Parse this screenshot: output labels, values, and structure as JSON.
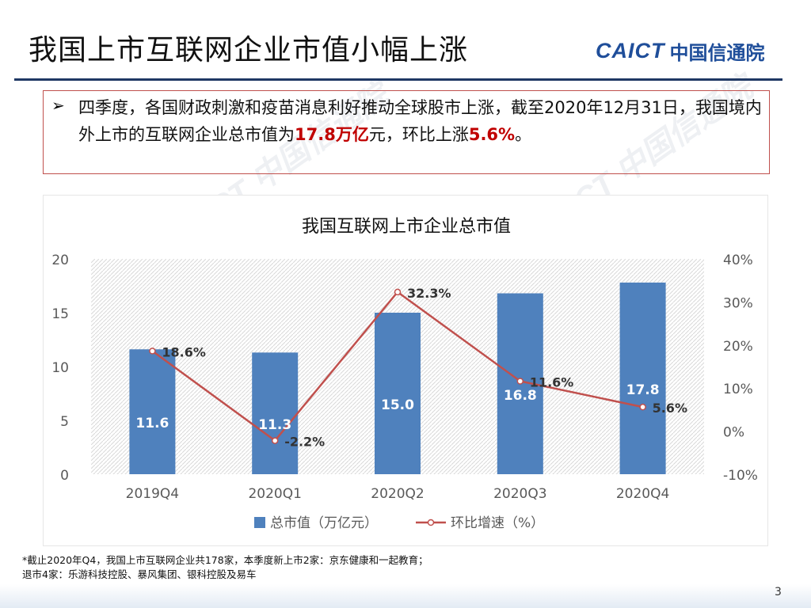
{
  "slide": {
    "title": "我国上市互联网企业市值小幅上涨",
    "logo_latin": "CAICT",
    "logo_cn": "中国信通院",
    "page_number": "3"
  },
  "callout": {
    "bullet_icon": "arrow-bullet-icon",
    "text_1": "四季度，各国财政刺激和疫苗消息利好推动全球股市上涨，截至2020年12月31日，我国境内外上市的互联网企业总市值为",
    "highlight_1": "17.8万亿",
    "text_2": "元，环比上涨",
    "highlight_2": "5.6%",
    "text_3": "。"
  },
  "footnote": {
    "line_1": "*截止2020年Q4，我国上市互联网企业共178家，本季度新上市2家：京东健康和一起教育；",
    "line_2": "退市4家：乐游科技控股、暴风集团、银科控股及易车"
  },
  "colors": {
    "bar": "#4f81bd",
    "line": "#c0504d",
    "title_rule": "#1f3864",
    "highlight": "#c00000",
    "callout_border": "#c0504d"
  },
  "chart_data": {
    "type": "bar",
    "title": "我国互联网上市企业总市值",
    "categories": [
      "2019Q4",
      "2020Q1",
      "2020Q2",
      "2020Q3",
      "2020Q4"
    ],
    "series": [
      {
        "name": "总市值（万亿元）",
        "type": "bar",
        "axis": "left",
        "values": [
          11.6,
          11.3,
          15.0,
          16.8,
          17.8
        ],
        "labels": [
          "11.6",
          "11.3",
          "15.0",
          "16.8",
          "17.8"
        ]
      },
      {
        "name": "环比增速（%）",
        "type": "line",
        "axis": "right",
        "values": [
          18.6,
          -2.2,
          32.3,
          11.6,
          5.6
        ],
        "labels": [
          "18.6%",
          "-2.2%",
          "32.3%",
          "11.6%",
          "5.6%"
        ]
      }
    ],
    "y_left": {
      "min": 0,
      "max": 20,
      "ticks": [
        "0",
        "5",
        "10",
        "15",
        "20"
      ]
    },
    "y_right": {
      "min": -10,
      "max": 40,
      "ticks": [
        "-10%",
        "0%",
        "10%",
        "20%",
        "30%",
        "40%"
      ]
    },
    "legend_position": "bottom",
    "grid": "hatched plot background"
  }
}
